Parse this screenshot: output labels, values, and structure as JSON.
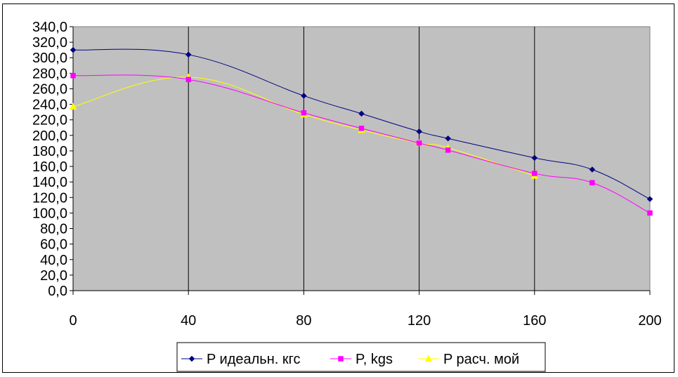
{
  "chart_data": {
    "type": "line",
    "title": "",
    "xlabel": "",
    "ylabel": "",
    "xlim": [
      0,
      200
    ],
    "ylim": [
      0,
      340
    ],
    "x_ticks": [
      0,
      40,
      80,
      120,
      160,
      200
    ],
    "y_ticks": [
      0,
      20,
      40,
      60,
      80,
      100,
      120,
      140,
      160,
      180,
      200,
      220,
      240,
      260,
      280,
      300,
      320,
      340
    ],
    "y_tick_labels": [
      "0,0",
      "20,0",
      "40,0",
      "60,0",
      "80,0",
      "100,0",
      "120,0",
      "140,0",
      "160,0",
      "180,0",
      "200,0",
      "220,0",
      "240,0",
      "260,0",
      "280,0",
      "300,0",
      "320,0",
      "340,0"
    ],
    "vertical_grid": true,
    "horizontal_grid": false,
    "legend_position": "bottom-center",
    "plot_background": "#c0c0c0",
    "series": [
      {
        "name": "P идеальн. кгс",
        "color": "#000080",
        "marker": "diamond",
        "x": [
          0,
          40,
          80,
          100,
          120,
          130,
          160,
          180,
          200
        ],
        "y": [
          310,
          304,
          251,
          228,
          205,
          196,
          171,
          156,
          118
        ]
      },
      {
        "name": "P, kgs",
        "color": "#ff00ff",
        "marker": "square",
        "x": [
          0,
          40,
          80,
          100,
          120,
          130,
          160,
          180,
          200
        ],
        "y": [
          277,
          272,
          229,
          209,
          190,
          181,
          151,
          139,
          100
        ]
      },
      {
        "name": "P расч. мой",
        "color": "#ffff00",
        "marker": "triangle",
        "x": [
          0,
          40,
          80,
          100,
          120,
          130,
          160
        ],
        "y": [
          237,
          275,
          227,
          207,
          190,
          184,
          148
        ]
      }
    ]
  }
}
